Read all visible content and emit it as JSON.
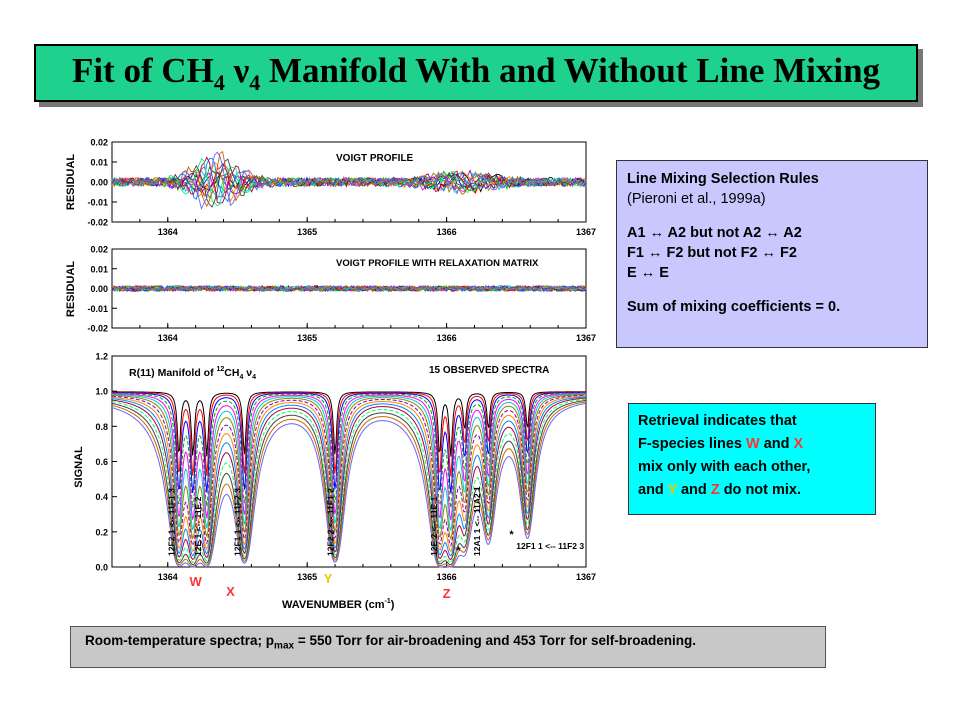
{
  "title": {
    "prefix": "Fit of CH",
    "sub": "4",
    "nu": " ν",
    "sub2": "4",
    "suffix": " Manifold With and Without Line Mixing"
  },
  "rules_box": {
    "heading": "Line Mixing Selection Rules",
    "citation": "(Pieroni et al., 1999a)",
    "rule1": "A1 ↔ A2 but not A2 ↔ A2",
    "rule2": "F1 ↔ F2 but not F2 ↔ F2",
    "rule3": "E ↔ E",
    "sum": "Sum of mixing coefficients = 0."
  },
  "retrieval_box": {
    "t1": "Retrieval indicates that",
    "t2": "F-species lines ",
    "w": "W",
    "and1": " and ",
    "x": "X",
    "t3": "mix only with each other,",
    "t4": "and ",
    "y": "Y",
    "and2": " and ",
    "z": "Z",
    "t5": " do not mix."
  },
  "footer": {
    "pre": "Room-temperature spectra; p",
    "sub": "max",
    "post": " = 550 Torr for air-broadening and 453 Torr for self-broadening."
  },
  "colors": {
    "title_bg": "#1ed18c",
    "rules_bg": "#c8c8ff",
    "retrieval_bg": "#00ffff",
    "footer_bg": "#c8c8c8",
    "letter_red": "#ff3333",
    "letter_yellow": "#e8c800"
  },
  "chart_data": [
    {
      "type": "line",
      "label": "VOIGT PROFILE",
      "ylabel": "RESIDUAL",
      "xlim": [
        1363.6,
        1367
      ],
      "ylim": [
        -0.02,
        0.02
      ],
      "yticks": [
        "0.02",
        "0.01",
        "0.00",
        "-0.01",
        "-0.02"
      ],
      "xticks": [
        "1364",
        "1365",
        "1366",
        "1367"
      ]
    },
    {
      "type": "line",
      "label": "VOIGT PROFILE WITH RELAXATION MATRIX",
      "ylabel": "RESIDUAL",
      "xlim": [
        1363.6,
        1367
      ],
      "ylim": [
        -0.02,
        0.02
      ],
      "yticks": [
        "0.02",
        "0.01",
        "0.00",
        "-0.01",
        "-0.02"
      ],
      "xticks": [
        "1364",
        "1365",
        "1366",
        "1367"
      ]
    },
    {
      "type": "line",
      "title_pre": "R(11) Manifold of ",
      "title_sup": "12",
      "title_mid": "CH",
      "title_sub": "4",
      "title_nu": " ν",
      "title_sub2": "4",
      "legend_text": "15 OBSERVED SPECTRA",
      "ylabel": "SIGNAL",
      "xlabel_pre": "WAVENUMBER (cm",
      "xlabel_sup": "-1",
      "xlabel_post": ")",
      "xlim": [
        1363.6,
        1367
      ],
      "ylim": [
        0.0,
        1.2
      ],
      "yticks": [
        "1.2",
        "1.0",
        "0.8",
        "0.6",
        "0.4",
        "0.2",
        "0.0"
      ],
      "xticks": [
        "1364",
        "1365",
        "1366",
        "1367"
      ],
      "line_labels": [
        {
          "text": "12F2 1 <-- 11F1 3",
          "x": 1364.05
        },
        {
          "text": "12E 1 <-- 11E 2",
          "x": 1364.24
        },
        {
          "text": "12F1 1 <-- 11F2 3",
          "x": 1364.52
        },
        {
          "text": "12F2 2 <-- 11F1 2",
          "x": 1365.19
        },
        {
          "text": "12E 2 <-- 11E 1",
          "x": 1365.93
        },
        {
          "text": "12A1 1 <-- 11A2 1",
          "x": 1366.24
        }
      ],
      "star_label": "*",
      "side_label": "12F1 1 <-- 11F2 3",
      "markers": [
        {
          "text": "W",
          "x": 1364.2
        },
        {
          "text": "X",
          "x": 1364.45
        },
        {
          "text": "Y",
          "x": 1365.15
        },
        {
          "text": "Z",
          "x": 1366.0
        }
      ],
      "absorption_lines": [
        1364.08,
        1364.18,
        1364.28,
        1364.55,
        1365.2,
        1365.95,
        1366.03,
        1366.13,
        1366.3,
        1366.58
      ],
      "n_spectra": 15,
      "series_colors": [
        "#000000",
        "#ff0000",
        "#0000ff",
        "#00aa00",
        "#ff00ff",
        "#00cccc",
        "#888800",
        "#8800aa",
        "#ff8800",
        "#0088ff",
        "#aa0044",
        "#00ff66",
        "#444444",
        "#cc6600",
        "#6666ff"
      ]
    }
  ]
}
